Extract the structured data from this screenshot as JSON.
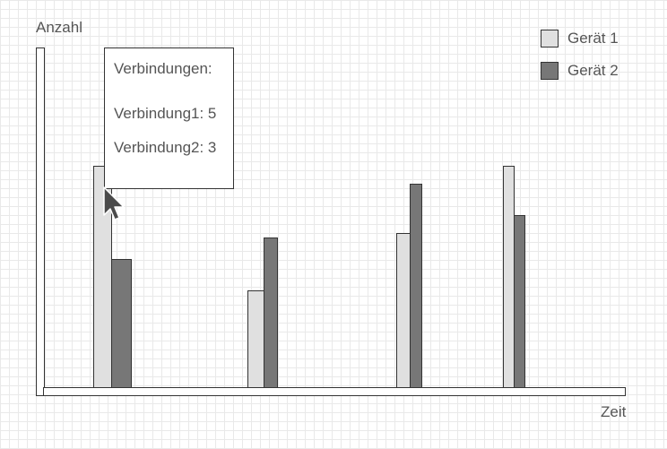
{
  "chart_data": {
    "type": "bar",
    "ylabel": "Anzahl",
    "xlabel": "Zeit",
    "ylim": [
      0,
      6.6
    ],
    "categories": [
      "",
      "",
      "",
      ""
    ],
    "series": [
      {
        "name": "Gerät 1",
        "color": "#e0e0e0",
        "values": [
          5,
          2.2,
          3.5,
          5
        ]
      },
      {
        "name": "Gerät 2",
        "color": "#777777",
        "values": [
          2.9,
          3.4,
          4.6,
          3.9
        ]
      }
    ],
    "legend": "top-right"
  },
  "tooltip": {
    "title": "Verbindungen:",
    "line1": "Verbindung1: 5",
    "line2": "Verbindung2: 3"
  },
  "cursor_icon": "mouse-pointer-icon"
}
